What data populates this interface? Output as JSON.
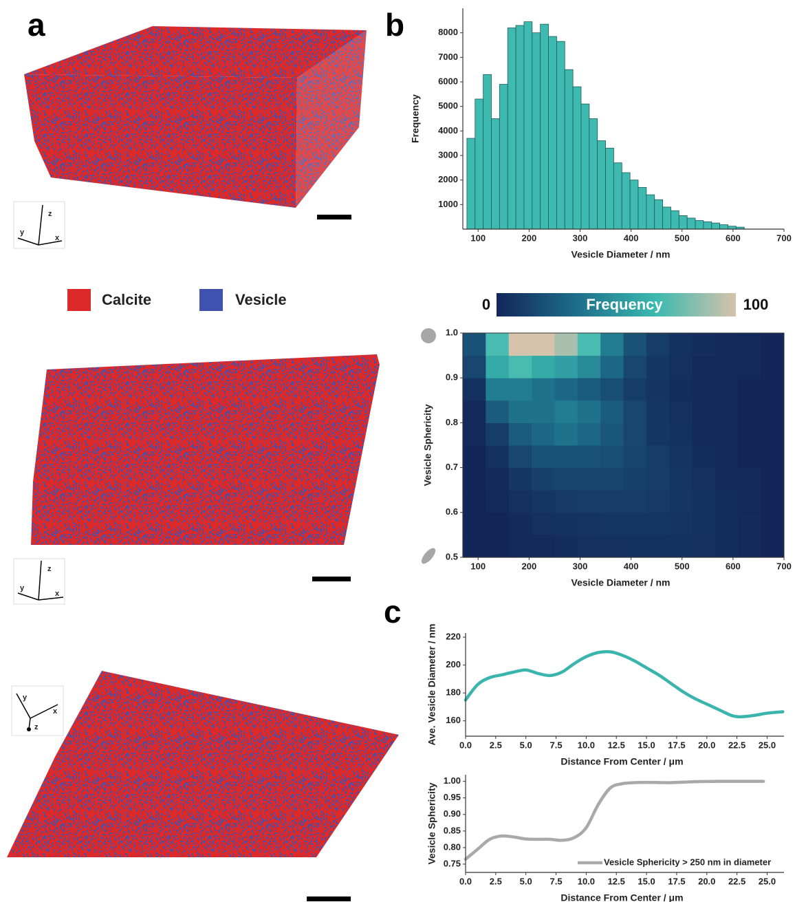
{
  "panel_labels": [
    "a",
    "b",
    "c"
  ],
  "legend": {
    "items": [
      {
        "name": "Calcite",
        "color": "#dc2a2a"
      },
      {
        "name": "Vesicle",
        "color": "#3f52b0"
      }
    ]
  },
  "triad_labels": {
    "x": "x",
    "y": "y",
    "z": "z"
  },
  "chart_data": [
    {
      "type": "histogram",
      "xlabel": "Vesicle Diameter / nm",
      "ylabel": "Frequency",
      "color": "#3fbab1",
      "edgecolor": "#1d5a57",
      "bins": [
        78,
        94,
        110,
        126,
        142,
        158,
        174,
        190,
        206,
        222,
        238,
        254,
        270,
        286,
        302,
        318,
        334,
        350,
        366,
        382,
        398,
        414,
        430,
        446,
        462,
        478,
        494,
        510,
        526,
        542,
        558,
        574,
        590,
        606,
        622
      ],
      "values": [
        3700,
        5300,
        6300,
        4500,
        5900,
        8200,
        8300,
        8450,
        8000,
        8350,
        7850,
        7650,
        6500,
        5800,
        5100,
        4500,
        3600,
        3300,
        2700,
        2300,
        2000,
        1700,
        1400,
        1200,
        900,
        750,
        550,
        450,
        350,
        300,
        250,
        180,
        120,
        80
      ],
      "xlim": [
        70,
        700
      ],
      "xticks": [
        100,
        200,
        300,
        400,
        500,
        600,
        700
      ],
      "ylim": [
        0,
        9000
      ],
      "yticks": [
        1000,
        2000,
        3000,
        4000,
        5000,
        6000,
        7000,
        8000
      ]
    },
    {
      "type": "heatmap",
      "xlabel": "Vesicle Diameter / nm",
      "ylabel": "Vesicle Sphericity",
      "x_edges": [
        70,
        115,
        160,
        205,
        250,
        295,
        340,
        385,
        430,
        475,
        520,
        565,
        610,
        655,
        700
      ],
      "y_edges": [
        0.5,
        0.55,
        0.6,
        0.65,
        0.7,
        0.75,
        0.8,
        0.85,
        0.9,
        0.95,
        1.0
      ],
      "z": [
        [
          0,
          0,
          1,
          2,
          3,
          4,
          4,
          5,
          5,
          5,
          4,
          3,
          2,
          0
        ],
        [
          0,
          0,
          2,
          4,
          5,
          6,
          7,
          7,
          7,
          6,
          5,
          3,
          2,
          0
        ],
        [
          0,
          1,
          4,
          7,
          9,
          10,
          10,
          10,
          9,
          7,
          5,
          3,
          1,
          0
        ],
        [
          0,
          2,
          8,
          12,
          14,
          14,
          14,
          12,
          10,
          7,
          4,
          2,
          1,
          0
        ],
        [
          0,
          5,
          15,
          20,
          20,
          20,
          18,
          14,
          10,
          6,
          3,
          1,
          0,
          0
        ],
        [
          1,
          10,
          25,
          30,
          35,
          30,
          22,
          15,
          8,
          5,
          2,
          1,
          0,
          0
        ],
        [
          2,
          25,
          35,
          35,
          40,
          35,
          25,
          15,
          8,
          4,
          2,
          1,
          0,
          0
        ],
        [
          5,
          40,
          40,
          35,
          30,
          25,
          18,
          10,
          6,
          3,
          2,
          1,
          0,
          0
        ],
        [
          15,
          60,
          70,
          60,
          55,
          45,
          30,
          15,
          8,
          4,
          2,
          1,
          1,
          0
        ],
        [
          20,
          70,
          100,
          100,
          90,
          70,
          40,
          20,
          10,
          5,
          3,
          2,
          1,
          0
        ]
      ],
      "xlim": [
        70,
        700
      ],
      "xticks": [
        100,
        200,
        300,
        400,
        500,
        600,
        700
      ],
      "ylim": [
        0.5,
        1.0
      ],
      "yticks": [
        0.5,
        0.6,
        0.7,
        0.8,
        0.9,
        {
          "value": 1,
          "label": "1.0"
        }
      ],
      "colorbar": {
        "label": "Frequency",
        "min": 0,
        "max": 100,
        "colors": [
          "#13265a",
          "#1d6e8a",
          "#3bbab0",
          "#d6c3ab"
        ]
      }
    },
    {
      "type": "line",
      "xlabel": "Distance From Center / μm",
      "ylabel": "Ave. Vesicle Diameter / nm",
      "x": [
        0,
        1,
        2,
        3,
        4,
        5,
        6,
        7,
        8,
        9,
        10,
        11,
        12,
        13,
        14,
        15,
        16,
        17,
        18,
        19,
        20,
        21,
        22,
        22.5,
        23,
        24,
        25,
        26.3
      ],
      "series": [
        {
          "color": "#3ab5ad",
          "values": [
            175,
            186,
            191,
            193,
            195,
            196.5,
            194,
            192.5,
            195,
            201,
            206,
            209,
            209.5,
            207,
            203,
            198,
            193,
            187,
            181,
            176,
            172,
            168,
            164,
            163,
            163,
            164,
            165.5,
            166.5
          ]
        }
      ],
      "xlim": [
        0,
        26.4
      ],
      "xticks": [
        {
          "value": 0,
          "label": "0.0"
        },
        2.5,
        {
          "value": 5,
          "label": "5.0"
        },
        7.5,
        {
          "value": 10,
          "label": "10.0"
        },
        12.5,
        {
          "value": 15,
          "label": "15.0"
        },
        17.5,
        {
          "value": 20,
          "label": "20.0"
        },
        22.5,
        {
          "value": 25,
          "label": "25.0"
        }
      ],
      "ylim": [
        149,
        223
      ],
      "yticks": [
        160,
        180,
        200,
        220
      ]
    },
    {
      "type": "line",
      "xlabel": "Distance From Center / μm",
      "ylabel": "Vesicle Sphericity",
      "x": [
        0,
        1,
        2,
        3,
        4,
        5,
        6,
        7,
        8,
        9,
        10,
        11,
        12,
        13,
        14,
        15,
        17,
        19,
        21,
        23,
        24.7
      ],
      "series": [
        {
          "name": "Vesicle Sphericity > 250 nm in diameter",
          "color": "#a9a9ad",
          "values": [
            0.765,
            0.795,
            0.825,
            0.835,
            0.832,
            0.826,
            0.825,
            0.825,
            0.822,
            0.83,
            0.86,
            0.93,
            0.98,
            0.993,
            0.996,
            0.997,
            0.996,
            0.999,
            1.0,
            1.0,
            1.0
          ]
        }
      ],
      "xlim": [
        0,
        26.4
      ],
      "xticks": [
        {
          "value": 0,
          "label": "0.0"
        },
        2.5,
        {
          "value": 5,
          "label": "5.0"
        },
        7.5,
        {
          "value": 10,
          "label": "10.0"
        },
        12.5,
        {
          "value": 15,
          "label": "15.0"
        },
        17.5,
        {
          "value": 20,
          "label": "20.0"
        },
        22.5,
        {
          "value": 25,
          "label": "25.0"
        }
      ],
      "ylim": [
        0.725,
        1.02
      ],
      "yticks": [
        0.75,
        {
          "value": 0.8,
          "label": "0.80"
        },
        0.85,
        {
          "value": 0.9,
          "label": "0.90"
        },
        0.95,
        {
          "value": 1,
          "label": "1.00"
        }
      ]
    }
  ]
}
